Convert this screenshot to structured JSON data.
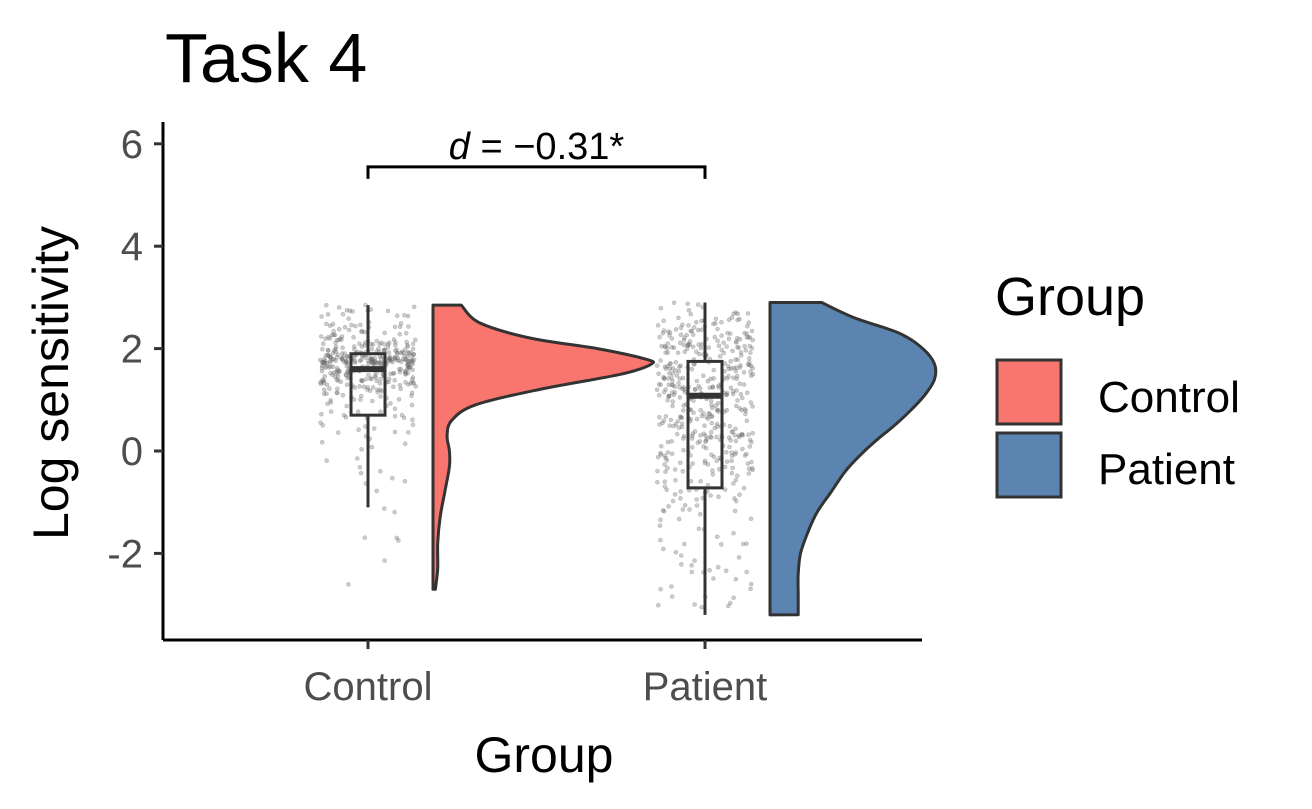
{
  "chart_data": {
    "type": "raincloud",
    "title": "Task 4",
    "xlabel": "Group",
    "ylabel": "Log sensitivity",
    "categories": [
      "Control",
      "Patient"
    ],
    "y_ticks": [
      "-2",
      "0",
      "2",
      "4",
      "6"
    ],
    "y_tick_values": [
      -2,
      0,
      2,
      4,
      6
    ],
    "ylim": [
      -3.7,
      6.5
    ],
    "grid": false,
    "legend": {
      "title": "Group",
      "position": "right",
      "entries": [
        {
          "label": "Control",
          "color": "#F8766D"
        },
        {
          "label": "Patient",
          "color": "#5B84B1"
        }
      ]
    },
    "annotation": {
      "text_italic": "d",
      "text_rest": " = −0.31*",
      "bracket_y": 5.55,
      "from": "Control",
      "to": "Patient"
    },
    "series": [
      {
        "name": "Control",
        "color": "#F8766D",
        "box": {
          "min": -1.1,
          "q1": 0.7,
          "median": 1.6,
          "q3": 1.9,
          "max": 2.85
        },
        "violin": {
          "y": [
            2.85,
            2.5,
            2.2,
            2.0,
            1.8,
            1.7,
            1.5,
            1.2,
            0.9,
            0.6,
            0.3,
            0.0,
            -0.3,
            -0.8,
            -1.3,
            -1.8,
            -2.3,
            -2.7
          ],
          "width": [
            0.12,
            0.2,
            0.42,
            0.7,
            0.9,
            0.93,
            0.8,
            0.45,
            0.18,
            0.08,
            0.06,
            0.07,
            0.07,
            0.05,
            0.03,
            0.02,
            0.02,
            0.01
          ]
        }
      },
      {
        "name": "Patient",
        "color": "#5B84B1",
        "box": {
          "min": -3.2,
          "q1": -0.72,
          "median": 1.08,
          "q3": 1.75,
          "max": 2.9
        },
        "violin": {
          "y": [
            2.9,
            2.6,
            2.3,
            2.0,
            1.7,
            1.4,
            1.1,
            0.8,
            0.5,
            0.2,
            -0.1,
            -0.4,
            -0.8,
            -1.2,
            -1.6,
            -2.0,
            -2.4,
            -2.8,
            -3.2
          ],
          "width": [
            0.22,
            0.36,
            0.55,
            0.65,
            0.7,
            0.7,
            0.66,
            0.6,
            0.53,
            0.45,
            0.38,
            0.32,
            0.26,
            0.2,
            0.16,
            0.13,
            0.12,
            0.12,
            0.12
          ]
        }
      }
    ]
  }
}
